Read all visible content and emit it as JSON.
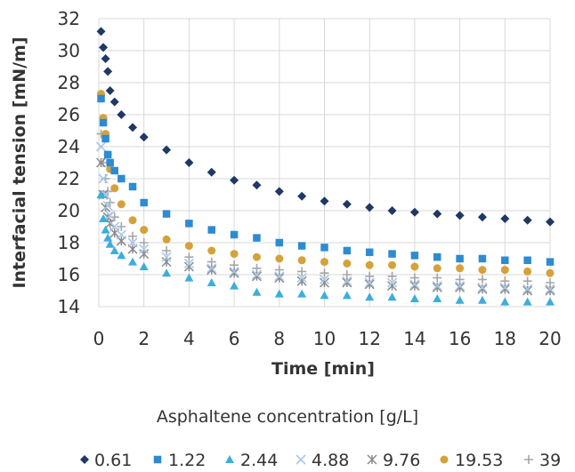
{
  "chart_data": {
    "type": "scatter",
    "title": "",
    "xlabel": "Time [min]",
    "ylabel": "Interfacial tension [mN/m]",
    "xlim": [
      0,
      20
    ],
    "ylim": [
      14,
      32
    ],
    "x_ticks": [
      0,
      2,
      4,
      6,
      8,
      10,
      12,
      14,
      16,
      18,
      20
    ],
    "y_ticks": [
      14,
      16,
      18,
      20,
      22,
      24,
      26,
      28,
      30,
      32
    ],
    "grid": true,
    "legend_title": "Asphaltene concentration [g/L]",
    "legend_position": "bottom",
    "series": [
      {
        "name": "0.61",
        "color": "#1f3864",
        "marker": "diamond",
        "x": [
          0.1,
          0.2,
          0.3,
          0.4,
          0.5,
          0.7,
          1,
          1.5,
          2,
          3,
          4,
          5,
          6,
          7,
          8,
          9,
          10,
          11,
          12,
          13,
          14,
          15,
          16,
          17,
          18,
          19,
          20
        ],
        "y": [
          31.2,
          30.2,
          29.5,
          28.7,
          27.5,
          26.8,
          26.0,
          25.2,
          24.6,
          23.8,
          23.0,
          22.4,
          21.9,
          21.6,
          21.2,
          20.9,
          20.6,
          20.4,
          20.2,
          20.0,
          19.9,
          19.8,
          19.7,
          19.6,
          19.5,
          19.4,
          19.3
        ]
      },
      {
        "name": "1.22",
        "color": "#2e8bd0",
        "marker": "square",
        "x": [
          0.1,
          0.2,
          0.3,
          0.4,
          0.5,
          0.7,
          1,
          1.5,
          2,
          3,
          4,
          5,
          6,
          7,
          8,
          9,
          10,
          11,
          12,
          13,
          14,
          15,
          16,
          17,
          18,
          19,
          20
        ],
        "y": [
          27.0,
          25.5,
          24.5,
          23.5,
          23.0,
          22.5,
          22.0,
          21.5,
          20.5,
          19.8,
          19.2,
          18.8,
          18.5,
          18.3,
          18.0,
          17.8,
          17.7,
          17.5,
          17.4,
          17.3,
          17.2,
          17.1,
          17.0,
          17.0,
          16.9,
          16.9,
          16.8
        ]
      },
      {
        "name": "2.44",
        "color": "#3daedb",
        "marker": "triangle",
        "x": [
          0.1,
          0.2,
          0.3,
          0.4,
          0.5,
          0.7,
          1,
          1.5,
          2,
          3,
          4,
          5,
          6,
          7,
          8,
          9,
          10,
          11,
          12,
          13,
          14,
          15,
          16,
          17,
          18,
          19,
          20
        ],
        "y": [
          21.0,
          19.5,
          18.8,
          18.3,
          17.9,
          17.5,
          17.2,
          16.8,
          16.5,
          16.1,
          15.8,
          15.5,
          15.3,
          14.9,
          14.8,
          14.8,
          14.7,
          14.7,
          14.6,
          14.6,
          14.5,
          14.5,
          14.4,
          14.4,
          14.3,
          14.3,
          14.3
        ]
      },
      {
        "name": "4.88",
        "color": "#a9c8e8",
        "marker": "x",
        "x": [
          0.1,
          0.2,
          0.3,
          0.4,
          0.5,
          0.7,
          1,
          1.5,
          2,
          3,
          4,
          5,
          6,
          7,
          8,
          9,
          10,
          11,
          12,
          13,
          14,
          15,
          16,
          17,
          18,
          19,
          20
        ],
        "y": [
          24.0,
          22.0,
          21.0,
          20.3,
          19.7,
          19.0,
          18.5,
          18.0,
          17.6,
          17.1,
          16.7,
          16.4,
          16.2,
          16.0,
          15.9,
          15.8,
          15.7,
          15.6,
          15.5,
          15.5,
          15.4,
          15.3,
          15.3,
          15.2,
          15.2,
          15.1,
          15.1
        ]
      },
      {
        "name": "9.76",
        "color": "#8a8a8a",
        "marker": "asterisk",
        "x": [
          0.1,
          0.2,
          0.3,
          0.4,
          0.5,
          0.7,
          1,
          1.5,
          2,
          3,
          4,
          5,
          6,
          7,
          8,
          9,
          10,
          11,
          12,
          13,
          14,
          15,
          16,
          17,
          18,
          19,
          20
        ],
        "y": [
          23.0,
          21.0,
          20.2,
          19.6,
          19.2,
          18.6,
          18.1,
          17.6,
          17.3,
          16.8,
          16.5,
          16.3,
          16.1,
          15.9,
          15.8,
          15.6,
          15.5,
          15.5,
          15.4,
          15.3,
          15.3,
          15.2,
          15.2,
          15.1,
          15.1,
          15.0,
          15.0
        ]
      },
      {
        "name": "19.53",
        "color": "#d4a23a",
        "marker": "circle",
        "x": [
          0.1,
          0.2,
          0.3,
          0.4,
          0.5,
          0.7,
          1,
          1.5,
          2,
          3,
          4,
          5,
          6,
          7,
          8,
          9,
          10,
          11,
          12,
          13,
          14,
          15,
          16,
          17,
          18,
          19,
          20
        ],
        "y": [
          27.3,
          25.8,
          24.8,
          23.5,
          22.6,
          21.4,
          20.4,
          19.4,
          18.8,
          18.2,
          17.8,
          17.5,
          17.3,
          17.1,
          17.0,
          16.9,
          16.8,
          16.7,
          16.6,
          16.6,
          16.5,
          16.4,
          16.4,
          16.3,
          16.3,
          16.2,
          16.1
        ]
      },
      {
        "name": "39",
        "color": "#a6a6a6",
        "marker": "plus",
        "x": [
          0.1,
          0.2,
          0.3,
          0.4,
          0.5,
          0.7,
          1,
          1.5,
          2,
          3,
          4,
          5,
          6,
          7,
          8,
          9,
          10,
          11,
          12,
          13,
          14,
          15,
          16,
          17,
          18,
          19,
          20
        ],
        "y": [
          24.8,
          23.0,
          22.0,
          21.2,
          20.5,
          19.6,
          19.0,
          18.4,
          18.0,
          17.5,
          17.1,
          16.8,
          16.6,
          16.4,
          16.3,
          16.2,
          16.1,
          16.0,
          15.9,
          15.9,
          15.8,
          15.8,
          15.7,
          15.7,
          15.6,
          15.6,
          15.5
        ]
      }
    ]
  }
}
